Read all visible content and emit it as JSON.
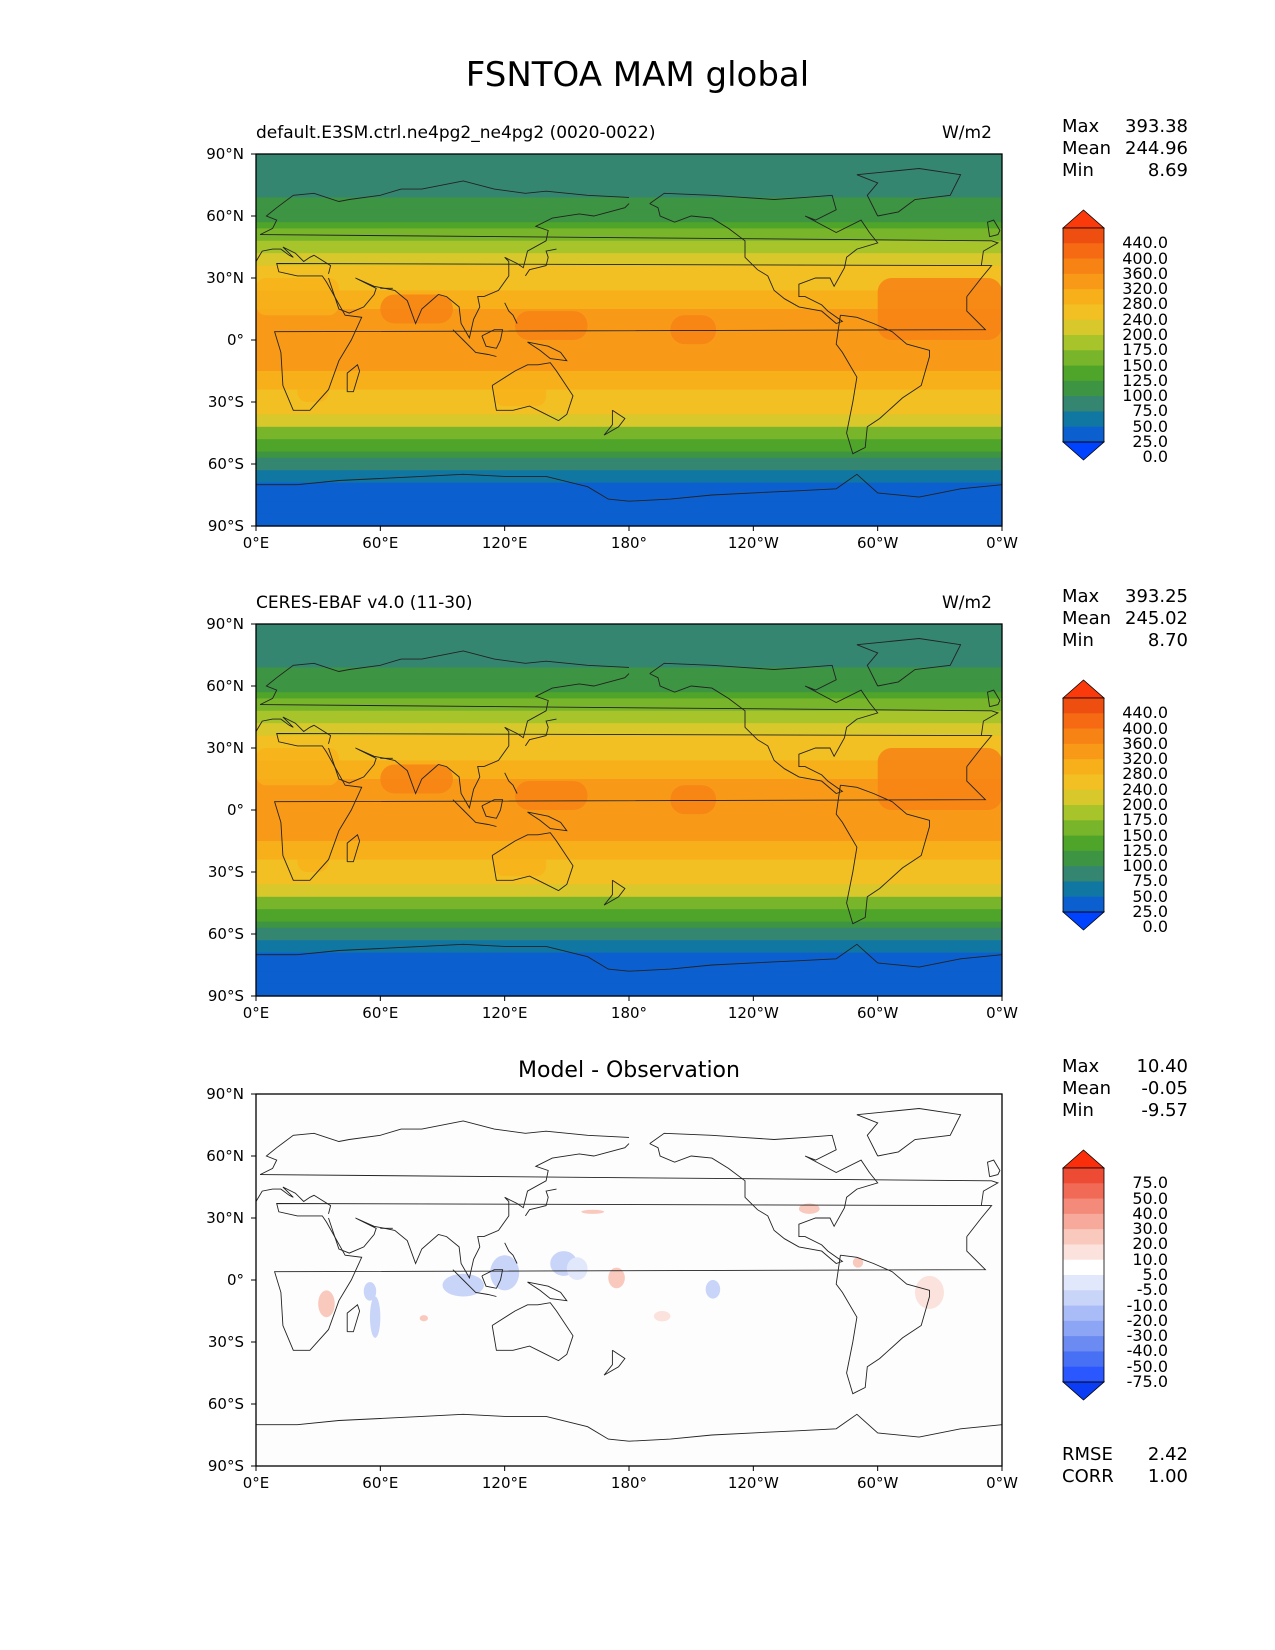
{
  "title": "FSNTOA MAM global",
  "colors": {
    "levels": [
      "#0043ff",
      "#0c5fcf",
      "#1077a3",
      "#358670",
      "#3d9442",
      "#4fa42a",
      "#79b52a",
      "#a7c42b",
      "#d9c82b",
      "#f2c022",
      "#f8b01a",
      "#f89a18",
      "#f78315",
      "#f56a12",
      "#ee4e10",
      "#fb3a0c"
    ],
    "diff_levels": [
      "#0b3df5",
      "#2a57ff",
      "#4770f5",
      "#6b8bf2",
      "#8ca5f5",
      "#a9bcf7",
      "#c8d4f8",
      "#e2e8fb",
      "#ffffff",
      "#fbe2dc",
      "#f9c9bd",
      "#f7aa9b",
      "#f48a7a",
      "#f06a56",
      "#ee4b35",
      "#fb2e0c"
    ],
    "coast": "#222222"
  },
  "chart_data": [
    {
      "type": "heatmap",
      "panel_title_left": "default.E3SM.ctrl.ne4pg2_ne4pg2 (0020-0022)",
      "panel_title_right": "W/m2",
      "x_ticks": [
        "0°E",
        "60°E",
        "120°E",
        "180°",
        "120°W",
        "60°W",
        "0°W"
      ],
      "y_ticks": [
        "90°N",
        "60°N",
        "30°N",
        "0°",
        "30°S",
        "60°S",
        "90°S"
      ],
      "xlim": [
        0,
        360
      ],
      "ylim": [
        -90,
        90
      ],
      "stats": {
        "max_label": "Max",
        "max": "393.38",
        "mean_label": "Mean",
        "mean": "244.96",
        "min_label": "Min",
        "min": "8.69"
      },
      "colorbar_levels": [
        "440.0",
        "400.0",
        "360.0",
        "320.0",
        "280.0",
        "240.0",
        "200.0",
        "175.0",
        "150.0",
        "125.0",
        "100.0",
        "75.0",
        "50.0",
        "25.0",
        "0.0"
      ]
    },
    {
      "type": "heatmap",
      "panel_title_left": "CERES-EBAF v4.0 (11-30)",
      "panel_title_right": "W/m2",
      "x_ticks": [
        "0°E",
        "60°E",
        "120°E",
        "180°",
        "120°W",
        "60°W",
        "0°W"
      ],
      "y_ticks": [
        "90°N",
        "60°N",
        "30°N",
        "0°",
        "30°S",
        "60°S",
        "90°S"
      ],
      "xlim": [
        0,
        360
      ],
      "ylim": [
        -90,
        90
      ],
      "stats": {
        "max_label": "Max",
        "max": "393.25",
        "mean_label": "Mean",
        "mean": "245.02",
        "min_label": "Min",
        "min": "8.70"
      },
      "colorbar_levels": [
        "440.0",
        "400.0",
        "360.0",
        "320.0",
        "280.0",
        "240.0",
        "200.0",
        "175.0",
        "150.0",
        "125.0",
        "100.0",
        "75.0",
        "50.0",
        "25.0",
        "0.0"
      ]
    },
    {
      "type": "heatmap",
      "panel_title_center": "Model - Observation",
      "x_ticks": [
        "0°E",
        "60°E",
        "120°E",
        "180°",
        "120°W",
        "60°W",
        "0°W"
      ],
      "y_ticks": [
        "90°N",
        "60°N",
        "30°N",
        "0°",
        "30°S",
        "60°S",
        "90°S"
      ],
      "xlim": [
        0,
        360
      ],
      "ylim": [
        -90,
        90
      ],
      "stats": {
        "max_label": "Max",
        "max": "10.40",
        "mean_label": "Mean",
        "mean": "-0.05",
        "min_label": "Min",
        "min": "-9.57"
      },
      "colorbar_levels": [
        "75.0",
        "50.0",
        "40.0",
        "30.0",
        "20.0",
        "10.0",
        "5.0",
        "-5.0",
        "-10.0",
        "-20.0",
        "-30.0",
        "-40.0",
        "-50.0",
        "-75.0"
      ],
      "metrics": {
        "rmse_label": "RMSE",
        "rmse": "2.42",
        "corr_label": "CORR",
        "corr": "1.00"
      }
    }
  ]
}
